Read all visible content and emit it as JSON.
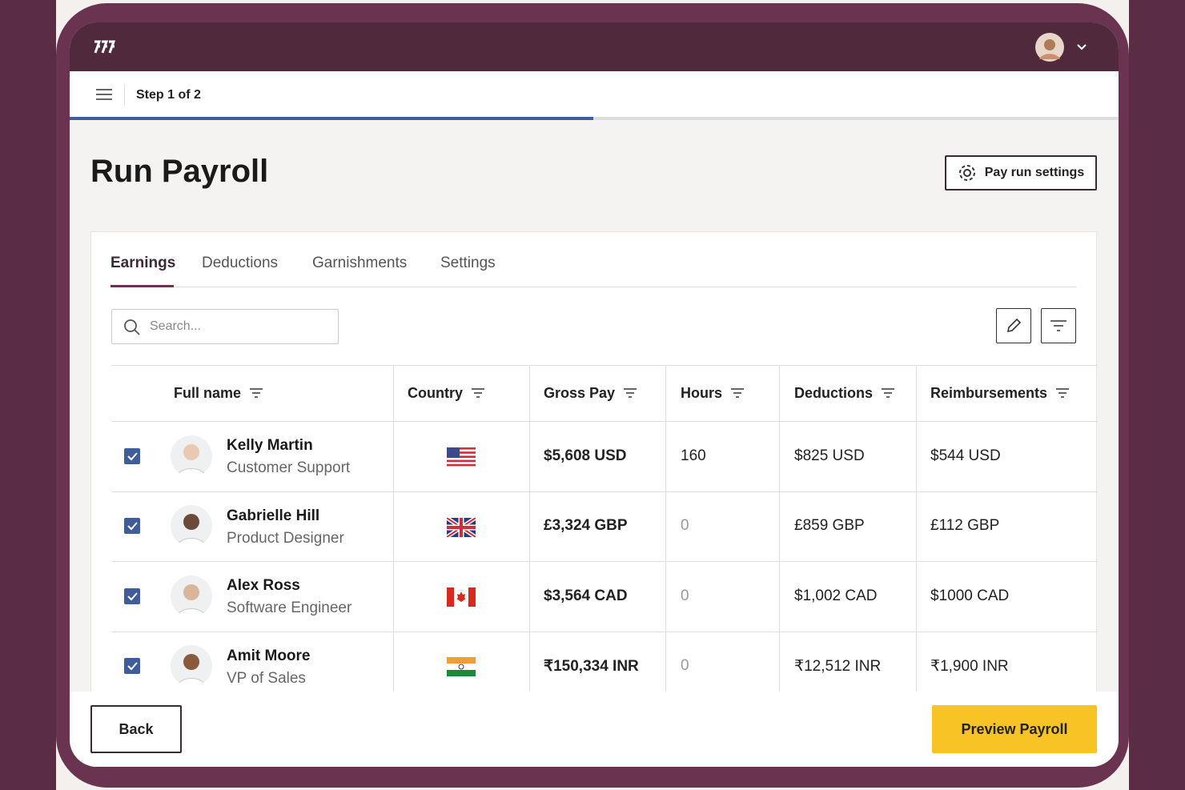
{
  "header": {
    "step": "Step 1 of 2"
  },
  "page": {
    "title": "Run Payroll",
    "settings_button": "Pay run settings"
  },
  "tabs": [
    "Earnings",
    "Deductions",
    "Garnishments",
    "Settings"
  ],
  "search": {
    "placeholder": "Search..."
  },
  "table": {
    "columns": [
      "Full name",
      "Country",
      "Gross Pay",
      "Hours",
      "Deductions",
      "Reimbursements"
    ],
    "rows": [
      [
        "Kelly Martin",
        "Customer Support",
        "$5,608 USD",
        "160",
        "$825 USD",
        "$544 USD"
      ],
      [
        "Gabrielle Hill",
        "Product Designer",
        "£3,324 GBP",
        "0",
        "£859 GBP",
        "£112 GBP"
      ],
      [
        "Alex Ross",
        "Software Engineer",
        "$3,564 CAD",
        "0",
        "$1,002 CAD",
        "$1000 CAD"
      ],
      [
        "Amit Moore",
        "VP of Sales",
        "₹150,334 INR",
        "0",
        "₹12,512 INR",
        "₹1,900 INR"
      ]
    ]
  },
  "footer": {
    "back": "Back",
    "next": "Preview Payroll"
  }
}
